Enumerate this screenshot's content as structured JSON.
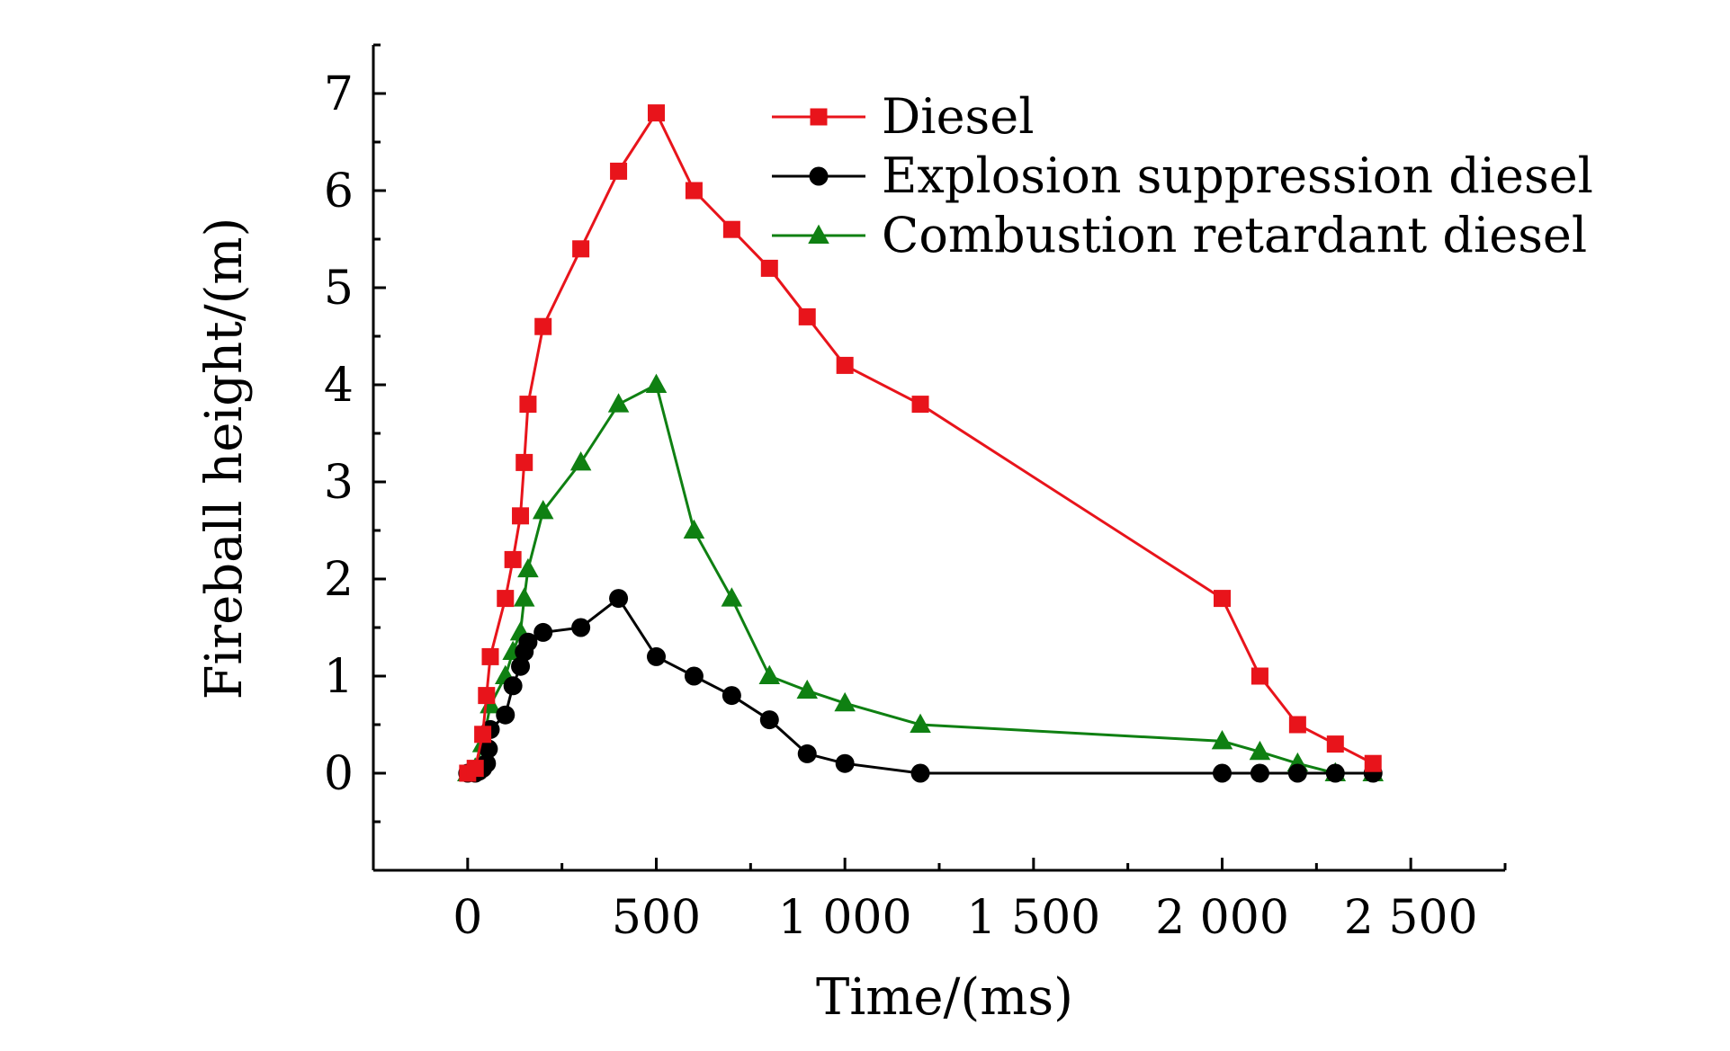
{
  "chart_data": {
    "type": "line",
    "title": "",
    "xlabel": "Time/(ms)",
    "ylabel": "Fireball height/(m)",
    "xlim": [
      -250,
      2750
    ],
    "ylim": [
      -1,
      7.5
    ],
    "xticks": [
      0,
      500,
      1000,
      1500,
      2000,
      2500
    ],
    "xtick_labels": [
      "0",
      "500",
      "1 000",
      "1 500",
      "2 000",
      "2 500"
    ],
    "yticks": [
      0,
      1,
      2,
      3,
      4,
      5,
      6,
      7
    ],
    "ytick_labels": [
      "0",
      "1",
      "2",
      "3",
      "4",
      "5",
      "6",
      "7"
    ],
    "grid": false,
    "legend_position": "top-right",
    "series": [
      {
        "name": "Diesel",
        "color": "#e8141b",
        "marker": "square",
        "x": [
          0,
          20,
          40,
          50,
          60,
          100,
          120,
          140,
          150,
          160,
          200,
          300,
          400,
          500,
          600,
          700,
          800,
          900,
          1000,
          1200,
          2000,
          2100,
          2200,
          2300,
          2400
        ],
        "y": [
          0,
          0.05,
          0.4,
          0.8,
          1.2,
          1.8,
          2.2,
          2.65,
          3.2,
          3.8,
          4.6,
          5.4,
          6.2,
          6.8,
          6.0,
          5.6,
          5.2,
          4.7,
          4.2,
          3.8,
          1.8,
          1.0,
          0.5,
          0.3,
          0.1
        ]
      },
      {
        "name": "Explosion suppression diesel",
        "color": "#000000",
        "marker": "circle",
        "x": [
          0,
          20,
          30,
          40,
          50,
          55,
          60,
          100,
          120,
          140,
          150,
          160,
          200,
          300,
          400,
          500,
          600,
          700,
          800,
          900,
          1000,
          1200,
          2000,
          2100,
          2200,
          2300,
          2400
        ],
        "y": [
          0,
          0,
          0.02,
          0.05,
          0.1,
          0.25,
          0.45,
          0.6,
          0.9,
          1.1,
          1.25,
          1.35,
          1.45,
          1.5,
          1.8,
          1.2,
          1.0,
          0.8,
          0.55,
          0.2,
          0.1,
          0,
          0,
          0,
          0,
          0,
          0
        ]
      },
      {
        "name": "Combustion retardant diesel",
        "color": "#0f8012",
        "marker": "triangle",
        "x": [
          0,
          20,
          40,
          60,
          100,
          120,
          140,
          150,
          160,
          200,
          300,
          400,
          500,
          600,
          700,
          800,
          900,
          1000,
          1200,
          2000,
          2100,
          2200,
          2300,
          2400
        ],
        "y": [
          0,
          0.05,
          0.3,
          0.7,
          1.0,
          1.25,
          1.45,
          1.8,
          2.1,
          2.7,
          3.2,
          3.8,
          4.0,
          2.5,
          1.8,
          1.0,
          0.85,
          0.72,
          0.5,
          0.33,
          0.22,
          0.1,
          0,
          0
        ]
      }
    ]
  }
}
